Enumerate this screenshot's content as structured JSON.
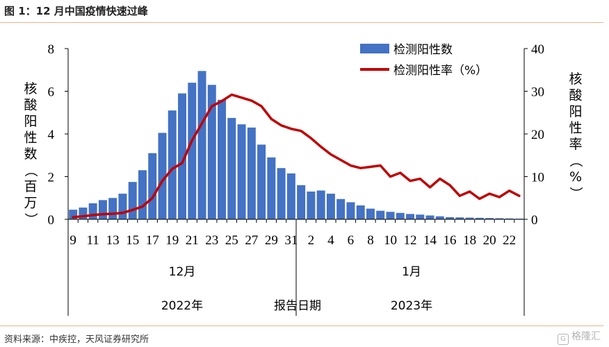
{
  "figure_title": "图 1：12 月中国疫情快速过峰",
  "source_note": "资料来源：中疾控，天风证券研究所",
  "watermark": {
    "icon": "G",
    "text": "格隆汇"
  },
  "colors": {
    "bar": "#4472c4",
    "line": "#c00000",
    "rule": "#e6b58c",
    "axis": "#000000"
  },
  "chart_data": {
    "type": "bar",
    "title": "",
    "x": [
      "9",
      "10",
      "11",
      "12",
      "13",
      "14",
      "15",
      "16",
      "17",
      "18",
      "19",
      "20",
      "21",
      "22",
      "23",
      "24",
      "25",
      "26",
      "27",
      "28",
      "29",
      "30",
      "31",
      "1",
      "2",
      "3",
      "4",
      "5",
      "6",
      "7",
      "8",
      "9",
      "10",
      "11",
      "12",
      "13",
      "14",
      "15",
      "16",
      "17",
      "18",
      "19",
      "20",
      "21",
      "22",
      "23"
    ],
    "x_tick_labels": [
      "9",
      "11",
      "13",
      "15",
      "17",
      "19",
      "21",
      "23",
      "25",
      "27",
      "29",
      "31",
      "2",
      "4",
      "6",
      "8",
      "10",
      "12",
      "14",
      "16",
      "18",
      "20",
      "22"
    ],
    "month_labels": [
      "12月",
      "1月"
    ],
    "year_labels": [
      "2022年",
      "2023年"
    ],
    "xlabel": "报告日期",
    "ylabel": "核酸阳性数（百万）",
    "y2label": "核酸阳性率（%）",
    "ylim": [
      0,
      8
    ],
    "y2lim": [
      0,
      40
    ],
    "yticks": [
      "0",
      "2",
      "4",
      "6",
      "8"
    ],
    "y2ticks": [
      "0",
      "10",
      "20",
      "30",
      "40"
    ],
    "legend_position": "top-right",
    "series": [
      {
        "name": "检测阳性数",
        "type": "bar",
        "axis": "left",
        "values": [
          0.45,
          0.55,
          0.75,
          0.9,
          1.0,
          1.2,
          1.75,
          2.3,
          3.1,
          4.05,
          5.1,
          5.9,
          6.4,
          6.95,
          6.3,
          5.6,
          4.75,
          4.45,
          4.3,
          3.5,
          2.9,
          2.4,
          2.15,
          1.6,
          1.3,
          1.35,
          1.2,
          0.95,
          0.8,
          0.65,
          0.5,
          0.4,
          0.35,
          0.3,
          0.25,
          0.22,
          0.18,
          0.14,
          0.1,
          0.09,
          0.08,
          0.07,
          0.06,
          0.05,
          0.04,
          0.03
        ]
      },
      {
        "name": "检测阳性率（%）",
        "type": "line",
        "axis": "right",
        "values": [
          0.5,
          0.7,
          1.0,
          1.2,
          1.3,
          1.5,
          2.2,
          3.0,
          5.0,
          9.0,
          11.8,
          13.2,
          18.5,
          22.5,
          26.5,
          27.7,
          29.2,
          28.5,
          27.8,
          26.5,
          23.5,
          22.0,
          21.2,
          20.7,
          19.0,
          17.0,
          15.2,
          13.9,
          12.6,
          12.0,
          12.3,
          12.6,
          10.0,
          10.9,
          9.0,
          9.5,
          7.5,
          9.5,
          8.0,
          5.5,
          6.5,
          4.8,
          6.0,
          5.2,
          6.7,
          5.5
        ]
      }
    ]
  }
}
